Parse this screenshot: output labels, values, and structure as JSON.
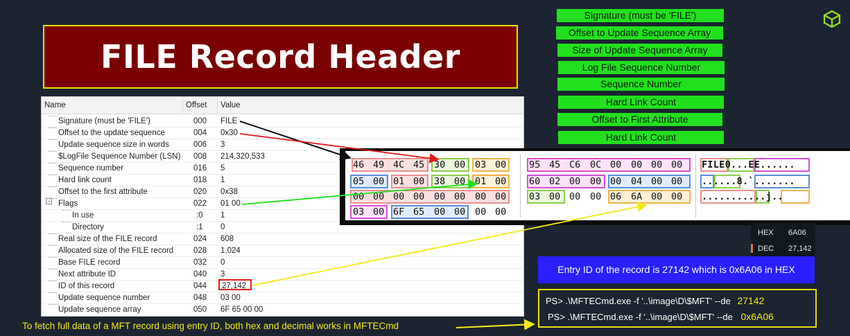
{
  "title": "FILE Record Header",
  "legend": [
    {
      "label": "Signature (must be 'FILE')"
    },
    {
      "label": "Offset to Update Sequence Array"
    },
    {
      "label": "Size of Update Sequence Array"
    },
    {
      "label": "Log File Sequence Number"
    },
    {
      "label": "Sequence Number"
    },
    {
      "label": "Hard Link Count"
    },
    {
      "label": "Offset to First Attribute"
    },
    {
      "label": "Hard Link Count"
    }
  ],
  "table": {
    "headers": {
      "name": "Name",
      "offset": "Offset",
      "value": "Value"
    },
    "rows": [
      {
        "name": "Signature (must be 'FILE')",
        "offset": "000",
        "value": "FILE"
      },
      {
        "name": "Offset to the update sequence",
        "offset": "004",
        "value": "0x30"
      },
      {
        "name": "Update sequence size in words",
        "offset": "006",
        "value": "3"
      },
      {
        "name": "$LogFile Sequence Number (LSN)",
        "offset": "008",
        "value": "214,320,533"
      },
      {
        "name": "Sequence number",
        "offset": "016",
        "value": "5"
      },
      {
        "name": "Hard link count",
        "offset": "018",
        "value": "1"
      },
      {
        "name": "Offset to the first attribute",
        "offset": "020",
        "value": "0x38"
      },
      {
        "name": "Flags",
        "offset": "022",
        "value": "01 00"
      },
      {
        "name": "In use",
        "offset": ":0",
        "value": "1"
      },
      {
        "name": "Directory",
        "offset": ":1",
        "value": "0"
      },
      {
        "name": "Real size of the FILE record",
        "offset": "024",
        "value": "608"
      },
      {
        "name": "Allocated size of the FILE record",
        "offset": "028",
        "value": "1,024"
      },
      {
        "name": "Base FILE record",
        "offset": "032",
        "value": "0"
      },
      {
        "name": "Next attribute ID",
        "offset": "040",
        "value": "3"
      },
      {
        "name": "ID of this record",
        "offset": "044",
        "value": "27,142"
      },
      {
        "name": "Update sequence number",
        "offset": "048",
        "value": "03 00"
      },
      {
        "name": "Update sequence array",
        "offset": "050",
        "value": "6F 65 00 00"
      }
    ]
  },
  "hex_dump": {
    "rows": [
      {
        "bytes": [
          "46",
          "49",
          "4C",
          "45",
          "30",
          "00",
          "03",
          "00",
          "95",
          "45",
          "C6",
          "0C",
          "00",
          "00",
          "00",
          "00"
        ],
        "ascii": "FILE0...EE......"
      },
      {
        "bytes": [
          "05",
          "00",
          "01",
          "00",
          "38",
          "00",
          "01",
          "00",
          "60",
          "02",
          "00",
          "00",
          "00",
          "04",
          "00",
          "00"
        ],
        "ascii": "......8.`......."
      },
      {
        "bytes": [
          "00",
          "00",
          "00",
          "00",
          "00",
          "00",
          "00",
          "00",
          "03",
          "00",
          "00",
          "00",
          "06",
          "6A",
          "00",
          "00"
        ],
        "ascii": "...........j.."
      },
      {
        "bytes": [
          "03",
          "00",
          "6F",
          "65",
          "00",
          "00",
          "00",
          "00"
        ],
        "ascii": ""
      }
    ]
  },
  "converter": {
    "hex_label": "HEX",
    "hex_value": "6A06",
    "dec_label": "DEC",
    "dec_value": "27,142"
  },
  "entry_note": "Entry ID of the record is 27142 which is 0x6A06 in HEX",
  "commands": [
    {
      "prefix": "PS> .\\MFTECmd.exe -f '..\\image\\D\\$MFT' --de",
      "value": "27142"
    },
    {
      "prefix": "PS> .\\MFTECmd.exe -f '..\\image\\D\\$MFT' --de",
      "value": "0x6A06"
    }
  ],
  "footer": "To fetch full data of a MFT record using entry ID, both hex and decimal works in MFTECmd",
  "colors": {
    "title_bg": "#7a0000",
    "title_border": "#e8e000",
    "legend_green": "#22e01e",
    "note_blue": "#2a1fff",
    "accent_yellow": "#f3ea1a",
    "page_bg": "#1b2430"
  }
}
